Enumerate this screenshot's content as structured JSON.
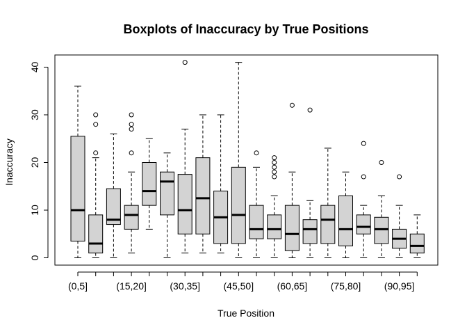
{
  "chart_data": {
    "type": "box",
    "title": "Boxplots of Inaccuracy by True Positions",
    "xlabel": "True Position",
    "ylabel": "Inaccuracy",
    "ylim": [
      0,
      41
    ],
    "y_ticks": [
      0,
      10,
      20,
      30,
      40
    ],
    "categories": [
      "(0,5]",
      "(5,10]",
      "(10,15]",
      "(15,20]",
      "(20,25]",
      "(25,30]",
      "(30,35]",
      "(35,40]",
      "(40,45]",
      "(45,50]",
      "(50,55]",
      "(55,60]",
      "(60,65]",
      "(65,70]",
      "(70,75]",
      "(75,80]",
      "(80,85]",
      "(85,90]",
      "(90,95]",
      "(95,100]"
    ],
    "visible_tick_labels": [
      "(0,5]",
      "(15,20]",
      "(30,35]",
      "(45,50]",
      "(60,65]",
      "(75,80]",
      "(90,95]"
    ],
    "box_fill": "#d3d3d3",
    "grid": false,
    "legend": "none",
    "boxes": [
      {
        "whisker_low": 0,
        "q1": 3.5,
        "median": 10,
        "q3": 25.5,
        "whisker_high": 36,
        "outliers": []
      },
      {
        "whisker_low": 0,
        "q1": 1,
        "median": 3,
        "q3": 9,
        "whisker_high": 21,
        "outliers": [
          22,
          28,
          30
        ]
      },
      {
        "whisker_low": 0,
        "q1": 7,
        "median": 8,
        "q3": 14.5,
        "whisker_high": 26,
        "outliers": []
      },
      {
        "whisker_low": 1,
        "q1": 6,
        "median": 9,
        "q3": 11,
        "whisker_high": 18,
        "outliers": [
          22,
          27,
          28,
          30
        ]
      },
      {
        "whisker_low": 6,
        "q1": 11,
        "median": 14,
        "q3": 20,
        "whisker_high": 25,
        "outliers": []
      },
      {
        "whisker_low": 0,
        "q1": 9,
        "median": 16,
        "q3": 18,
        "whisker_high": 22,
        "outliers": []
      },
      {
        "whisker_low": 1,
        "q1": 5,
        "median": 10,
        "q3": 17.5,
        "whisker_high": 27,
        "outliers": [
          41
        ]
      },
      {
        "whisker_low": 1,
        "q1": 5,
        "median": 12.5,
        "q3": 21,
        "whisker_high": 30,
        "outliers": []
      },
      {
        "whisker_low": 1,
        "q1": 3,
        "median": 8.5,
        "q3": 14,
        "whisker_high": 30,
        "outliers": []
      },
      {
        "whisker_low": 0,
        "q1": 3,
        "median": 9,
        "q3": 19,
        "whisker_high": 41,
        "outliers": []
      },
      {
        "whisker_low": 0,
        "q1": 4,
        "median": 6,
        "q3": 11,
        "whisker_high": 19,
        "outliers": [
          22
        ]
      },
      {
        "whisker_low": 0,
        "q1": 4,
        "median": 6,
        "q3": 9,
        "whisker_high": 13,
        "outliers": [
          17,
          18,
          19,
          20,
          21
        ]
      },
      {
        "whisker_low": 0,
        "q1": 1.5,
        "median": 5,
        "q3": 11,
        "whisker_high": 18,
        "outliers": [
          32
        ]
      },
      {
        "whisker_low": 0,
        "q1": 3,
        "median": 6,
        "q3": 8,
        "whisker_high": 12,
        "outliers": [
          31
        ]
      },
      {
        "whisker_low": 0,
        "q1": 3,
        "median": 8,
        "q3": 11,
        "whisker_high": 23,
        "outliers": []
      },
      {
        "whisker_low": 0,
        "q1": 2.5,
        "median": 6,
        "q3": 13,
        "whisker_high": 18,
        "outliers": []
      },
      {
        "whisker_low": 0,
        "q1": 5,
        "median": 6.5,
        "q3": 9,
        "whisker_high": 11,
        "outliers": [
          17,
          24
        ]
      },
      {
        "whisker_low": 0,
        "q1": 3,
        "median": 6,
        "q3": 8.5,
        "whisker_high": 13,
        "outliers": [
          20
        ]
      },
      {
        "whisker_low": 0,
        "q1": 2,
        "median": 4,
        "q3": 6,
        "whisker_high": 11,
        "outliers": [
          17
        ]
      },
      {
        "whisker_low": 0,
        "q1": 1,
        "median": 2.5,
        "q3": 5,
        "whisker_high": 9,
        "outliers": []
      }
    ]
  }
}
